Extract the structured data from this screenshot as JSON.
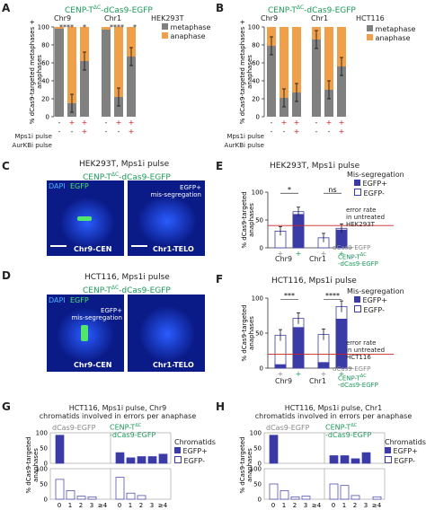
{
  "panels": {
    "A": {
      "label": "A",
      "title": "CENP-T",
      "title_sup": "ΔC",
      "title_rest": "-dCas9-EGFP",
      "cell": "HEK293T",
      "groups": [
        "Chr9",
        "Chr1"
      ],
      "ylabel": "% dCas9-targeted metaphases + anaphases",
      "legend": [
        "metaphase",
        "anaphase"
      ],
      "stars": [
        "****",
        "*",
        "****",
        "*"
      ],
      "rows": [
        {
          "name": "Mps1i pulse",
          "marks": [
            "-",
            "+",
            "+",
            "-",
            "+",
            "+"
          ]
        },
        {
          "name": "AurKBi pulse",
          "marks": [
            "-",
            "-",
            "+",
            "-",
            "-",
            "+"
          ]
        }
      ]
    },
    "B": {
      "label": "B",
      "title": "CENP-T",
      "title_sup": "ΔC",
      "title_rest": "-dCas9-EGFP",
      "cell": "HCT116",
      "groups": [
        "Chr9",
        "Chr1"
      ],
      "ylabel": "% dCas9-targeted metaphases + anaphases",
      "legend": [
        "metaphase",
        "anaphase"
      ],
      "rows": [
        {
          "name": "Mps1i pulse",
          "marks": [
            "-",
            "+",
            "+",
            "-",
            "+",
            "+"
          ]
        },
        {
          "name": "AurKBi pulse",
          "marks": [
            "-",
            "-",
            "+",
            "-",
            "-",
            "+"
          ]
        }
      ]
    },
    "C": {
      "label": "C",
      "title1": "HEK293T, Mps1i pulse",
      "title2a": "CENP-T",
      "title2sup": "ΔC",
      "title2b": "-dCas9-EGFP",
      "dapi": "DAPI",
      "egfp": "EGFP",
      "note1": "EGFP+",
      "note2": "mis-segregation",
      "cap1": "Chr9-CEN",
      "cap2": "Chr1-TELO"
    },
    "D": {
      "label": "D",
      "title1": "HCT116, Mps1i pulse",
      "title2a": "CENP-T",
      "title2sup": "ΔC",
      "title2b": "-dCas9-EGFP",
      "dapi": "DAPI",
      "egfp": "EGFP",
      "note1": "EGFP+",
      "note2": "mis-segregation",
      "cap1": "Chr9-CEN",
      "cap2": "Chr1-TELO"
    },
    "E": {
      "label": "E",
      "title": "HEK293T, Mps1i pulse",
      "ylabel": "% dCas9-targeted anaphases",
      "legend_title": "Mis-segregation",
      "legend": [
        "EGFP+",
        "EGFP-"
      ],
      "sig": [
        "*",
        "ns"
      ],
      "err_note": [
        "error rate",
        "in untreated",
        "HEK293T"
      ],
      "row1": "dCas9-EGFP",
      "row2a": "CENP-T",
      "row2sup": "ΔC",
      "row2b": "-dCas9-EGFP",
      "groups": [
        "Chr9",
        "Chr1"
      ],
      "marks": [
        "+",
        "+",
        "+",
        "+"
      ]
    },
    "F": {
      "label": "F",
      "title": "HCT116, Mps1i pulse",
      "ylabel": "% dCas9-targeted anaphases",
      "legend_title": "Mis-segregation",
      "legend": [
        "EGFP+",
        "EGFP-"
      ],
      "sig": [
        "***",
        "****"
      ],
      "err_note": [
        "error rate",
        "in untreated",
        "HCT116"
      ],
      "row1": "dCas9-EGFP",
      "row2a": "CENP-T",
      "row2sup": "ΔC",
      "row2b": "-dCas9-EGFP",
      "groups": [
        "Chr9",
        "Chr1"
      ],
      "marks": [
        "+",
        "+",
        "+",
        "+"
      ]
    },
    "G": {
      "label": "G",
      "title1": "HCT116, Mps1i pulse, Chr9",
      "title2": "chromatids involved in errors per anaphase",
      "left_label": "dCas9-EGFP",
      "right_a": "CENP-T",
      "right_sup": "ΔC",
      "right_b": "-dCas9-EGFP",
      "ylabel": "% dCas9-targeted anaphases",
      "legend_title": "Chromatids",
      "legend": [
        "EGFP+",
        "EGFP-"
      ],
      "xcats": [
        "0",
        "1",
        "2",
        "3",
        "≥4"
      ]
    },
    "H": {
      "label": "H",
      "title1": "HCT116, Mps1i pulse, Chr1",
      "title2": "chromatids involved in errors per anaphase",
      "left_label": "dCas9-EGFP",
      "right_a": "CENP-T",
      "right_sup": "ΔC",
      "right_b": "-dCas9-EGFP",
      "ylabel": "% dCas9-targeted anaphases",
      "legend_title": "Chromatids",
      "legend": [
        "EGFP+",
        "EGFP-"
      ],
      "xcats": [
        "0",
        "1",
        "2",
        "3",
        "≥4"
      ]
    }
  },
  "colors": {
    "metaphase": "#808080",
    "anaphase": "#f0a04b",
    "egfp_pos": "#3b3ba8",
    "egfp_neg": "#ffffff",
    "err_line": "#cc2222",
    "green": "#1a9a58"
  },
  "chart_data": [
    {
      "id": "A",
      "type": "bar",
      "stacked": true,
      "categories": [
        "Chr9 -/-",
        "Chr9 +/-",
        "Chr9 +/+",
        "Chr1 -/-",
        "Chr1 +/-",
        "Chr1 +/+"
      ],
      "series": [
        {
          "name": "metaphase",
          "values": [
            98,
            15,
            62,
            97,
            22,
            67
          ]
        },
        {
          "name": "anaphase",
          "values": [
            2,
            85,
            38,
            3,
            78,
            33
          ]
        }
      ],
      "ylim": [
        0,
        100
      ],
      "yticks": [
        0,
        20,
        40,
        60,
        80,
        100
      ]
    },
    {
      "id": "B",
      "type": "bar",
      "stacked": true,
      "categories": [
        "Chr9 -/-",
        "Chr9 +/-",
        "Chr9 +/+",
        "Chr1 -/-",
        "Chr1 +/-",
        "Chr1 +/+"
      ],
      "series": [
        {
          "name": "metaphase",
          "values": [
            79,
            21,
            27,
            86,
            30,
            56
          ]
        },
        {
          "name": "anaphase",
          "values": [
            21,
            79,
            73,
            14,
            70,
            44
          ]
        }
      ],
      "ylim": [
        0,
        100
      ],
      "yticks": [
        0,
        20,
        40,
        60,
        80,
        100
      ]
    },
    {
      "id": "E",
      "type": "bar",
      "stacked": true,
      "categories": [
        "Chr9 dCas9-EGFP",
        "Chr9 CENP-T",
        "Chr1 dCas9-EGFP",
        "Chr1 CENP-T"
      ],
      "series": [
        {
          "name": "EGFP+",
          "values": [
            0,
            60,
            0,
            32
          ]
        },
        {
          "name": "EGFP-",
          "values": [
            30,
            5,
            18,
            3
          ]
        }
      ],
      "ylim": [
        0,
        100
      ],
      "yticks": [
        0,
        50,
        100
      ],
      "error_rate": 40
    },
    {
      "id": "F",
      "type": "bar",
      "stacked": true,
      "categories": [
        "Chr9 dCas9-EGFP",
        "Chr9 CENP-T",
        "Chr1 dCas9-EGFP",
        "Chr1 CENP-T"
      ],
      "series": [
        {
          "name": "EGFP+",
          "values": [
            5,
            58,
            8,
            70
          ]
        },
        {
          "name": "EGFP-",
          "values": [
            42,
            13,
            40,
            18
          ]
        }
      ],
      "ylim": [
        0,
        100
      ],
      "yticks": [
        0,
        50,
        100
      ],
      "error_rate": 20
    },
    {
      "id": "G",
      "type": "bar",
      "xcats": [
        "0",
        "1",
        "2",
        "3",
        "≥4"
      ],
      "series": [
        {
          "name": "EGFP+ dCas9-EGFP",
          "values": [
            92,
            0,
            0,
            0,
            0
          ]
        },
        {
          "name": "EGFP+ CENP-T",
          "values": [
            35,
            18,
            22,
            22,
            30
          ]
        },
        {
          "name": "EGFP- dCas9-EGFP",
          "values": [
            65,
            28,
            10,
            8,
            0
          ]
        },
        {
          "name": "EGFP- CENP-T",
          "values": [
            72,
            20,
            12,
            0,
            0
          ]
        }
      ],
      "ylim": [
        0,
        100
      ],
      "yticks": [
        0,
        50,
        100
      ]
    },
    {
      "id": "H",
      "type": "bar",
      "xcats": [
        "0",
        "1",
        "2",
        "3",
        "≥4"
      ],
      "series": [
        {
          "name": "EGFP+ dCas9-EGFP",
          "values": [
            92,
            0,
            0,
            0,
            0
          ]
        },
        {
          "name": "EGFP+ CENP-T",
          "values": [
            25,
            25,
            15,
            35,
            0
          ]
        },
        {
          "name": "EGFP- dCas9-EGFP",
          "values": [
            50,
            28,
            8,
            10,
            0
          ]
        },
        {
          "name": "EGFP- CENP-T",
          "values": [
            50,
            45,
            12,
            0,
            8
          ]
        }
      ],
      "ylim": [
        0,
        100
      ],
      "yticks": [
        0,
        50,
        100
      ]
    }
  ]
}
